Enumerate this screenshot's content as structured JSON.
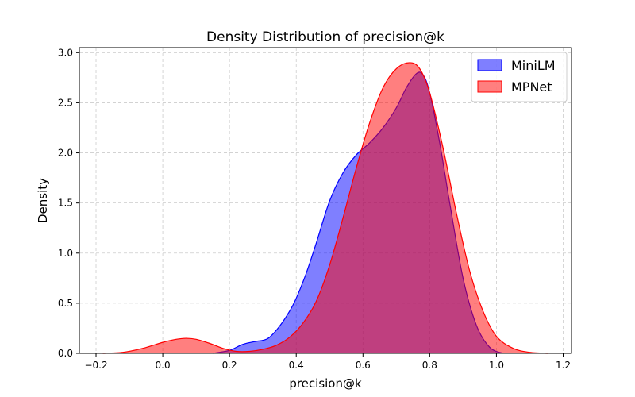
{
  "chart_data": {
    "type": "area",
    "title": "Density Distribution of precision@k",
    "xlabel": "precision@k",
    "ylabel": "Density",
    "xlim": [
      -0.25,
      1.225
    ],
    "ylim": [
      0,
      3.05
    ],
    "xticks": [
      -0.2,
      0.0,
      0.2,
      0.4,
      0.6,
      0.8,
      1.0,
      1.2
    ],
    "xtick_labels": [
      "−0.2",
      "0.0",
      "0.2",
      "0.4",
      "0.6",
      "0.8",
      "1.0",
      "1.2"
    ],
    "yticks": [
      0.0,
      0.5,
      1.0,
      1.5,
      2.0,
      2.5,
      3.0
    ],
    "ytick_labels": [
      "0.0",
      "0.5",
      "1.0",
      "1.5",
      "2.0",
      "2.5",
      "3.0"
    ],
    "grid": true,
    "legend_position": "top-right",
    "series": [
      {
        "name": "MiniLM",
        "color": "#0000ff",
        "fill_color": "#0000ff",
        "fill_opacity": 0.5,
        "x": [
          0.15,
          0.2,
          0.24,
          0.28,
          0.3,
          0.32,
          0.35,
          0.38,
          0.4,
          0.43,
          0.46,
          0.5,
          0.54,
          0.58,
          0.62,
          0.66,
          0.7,
          0.73,
          0.76,
          0.78,
          0.8,
          0.83,
          0.86,
          0.9,
          0.94,
          0.98,
          1.02
        ],
        "y": [
          0.0,
          0.03,
          0.09,
          0.12,
          0.13,
          0.16,
          0.27,
          0.42,
          0.55,
          0.8,
          1.1,
          1.52,
          1.8,
          1.98,
          2.1,
          2.25,
          2.45,
          2.65,
          2.79,
          2.78,
          2.6,
          2.1,
          1.5,
          0.75,
          0.28,
          0.06,
          0.0
        ]
      },
      {
        "name": "MPNet",
        "color": "#ff0000",
        "fill_color": "#ff0000",
        "fill_opacity": 0.5,
        "x": [
          -0.18,
          -0.12,
          -0.06,
          0.0,
          0.04,
          0.07,
          0.1,
          0.14,
          0.18,
          0.22,
          0.26,
          0.3,
          0.34,
          0.38,
          0.42,
          0.46,
          0.5,
          0.54,
          0.58,
          0.62,
          0.66,
          0.7,
          0.74,
          0.77,
          0.8,
          0.84,
          0.88,
          0.92,
          0.96,
          1.0,
          1.05,
          1.1,
          1.155
        ],
        "y": [
          0.0,
          0.01,
          0.05,
          0.11,
          0.14,
          0.15,
          0.14,
          0.1,
          0.05,
          0.02,
          0.02,
          0.04,
          0.08,
          0.16,
          0.3,
          0.52,
          0.88,
          1.35,
          1.85,
          2.3,
          2.65,
          2.84,
          2.9,
          2.84,
          2.6,
          2.05,
          1.4,
          0.82,
          0.42,
          0.17,
          0.05,
          0.01,
          0.0
        ]
      }
    ]
  }
}
